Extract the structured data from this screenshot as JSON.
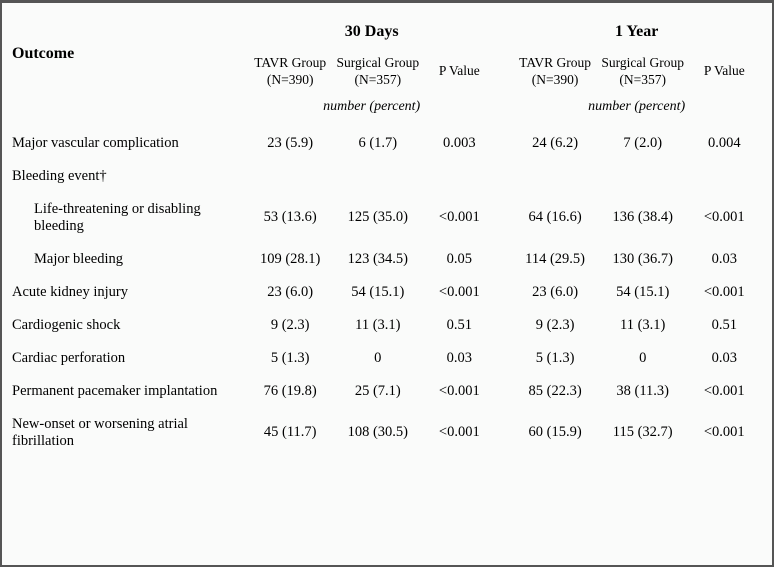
{
  "colors": {
    "border": "#555555",
    "background": "#fafbfa",
    "text": "#000000"
  },
  "typography": {
    "font_family": "Georgia, Times New Roman, serif",
    "header_fontsize": 16,
    "subhead_fontsize": 13.5,
    "body_fontsize": 14.5
  },
  "headers": {
    "outcome": "Outcome",
    "period_30d": "30 Days",
    "period_1y": "1 Year",
    "tavr": "TAVR Group",
    "tavr_n": "(N=390)",
    "surg": "Surgical Group",
    "surg_n": "(N=357)",
    "pvalue": "P Value",
    "np": "number (percent)"
  },
  "rows": [
    {
      "label": "Major vascular complication",
      "indent": false,
      "d30": {
        "tavr": "23 (5.9)",
        "surg": "6 (1.7)",
        "p": "0.003"
      },
      "y1": {
        "tavr": "24 (6.2)",
        "surg": "7 (2.0)",
        "p": "0.004"
      }
    },
    {
      "label": "Bleeding event†",
      "section": true
    },
    {
      "label": "Life-threatening or disabling bleeding",
      "indent": true,
      "d30": {
        "tavr": "53 (13.6)",
        "surg": "125 (35.0)",
        "p": "<0.001"
      },
      "y1": {
        "tavr": "64 (16.6)",
        "surg": "136 (38.4)",
        "p": "<0.001"
      }
    },
    {
      "label": "Major bleeding",
      "indent": true,
      "d30": {
        "tavr": "109 (28.1)",
        "surg": "123 (34.5)",
        "p": "0.05"
      },
      "y1": {
        "tavr": "114 (29.5)",
        "surg": "130 (36.7)",
        "p": "0.03"
      }
    },
    {
      "label": "Acute kidney injury",
      "indent": false,
      "d30": {
        "tavr": "23 (6.0)",
        "surg": "54 (15.1)",
        "p": "<0.001"
      },
      "y1": {
        "tavr": "23 (6.0)",
        "surg": "54 (15.1)",
        "p": "<0.001"
      }
    },
    {
      "label": "Cardiogenic shock",
      "indent": false,
      "d30": {
        "tavr": "9 (2.3)",
        "surg": "11 (3.1)",
        "p": "0.51"
      },
      "y1": {
        "tavr": "9 (2.3)",
        "surg": "11 (3.1)",
        "p": "0.51"
      }
    },
    {
      "label": "Cardiac perforation",
      "indent": false,
      "d30": {
        "tavr": "5 (1.3)",
        "surg": "0",
        "p": "0.03"
      },
      "y1": {
        "tavr": "5 (1.3)",
        "surg": "0",
        "p": "0.03"
      }
    },
    {
      "label": "Permanent pacemaker implantation",
      "indent": false,
      "d30": {
        "tavr": "76 (19.8)",
        "surg": "25 (7.1)",
        "p": "<0.001"
      },
      "y1": {
        "tavr": "85 (22.3)",
        "surg": "38 (11.3)",
        "p": "<0.001"
      }
    },
    {
      "label": "New-onset or worsening atrial fibrillation",
      "indent": false,
      "d30": {
        "tavr": "45 (11.7)",
        "surg": "108 (30.5)",
        "p": "<0.001"
      },
      "y1": {
        "tavr": "60 (15.9)",
        "surg": "115 (32.7)",
        "p": "<0.001"
      }
    }
  ]
}
